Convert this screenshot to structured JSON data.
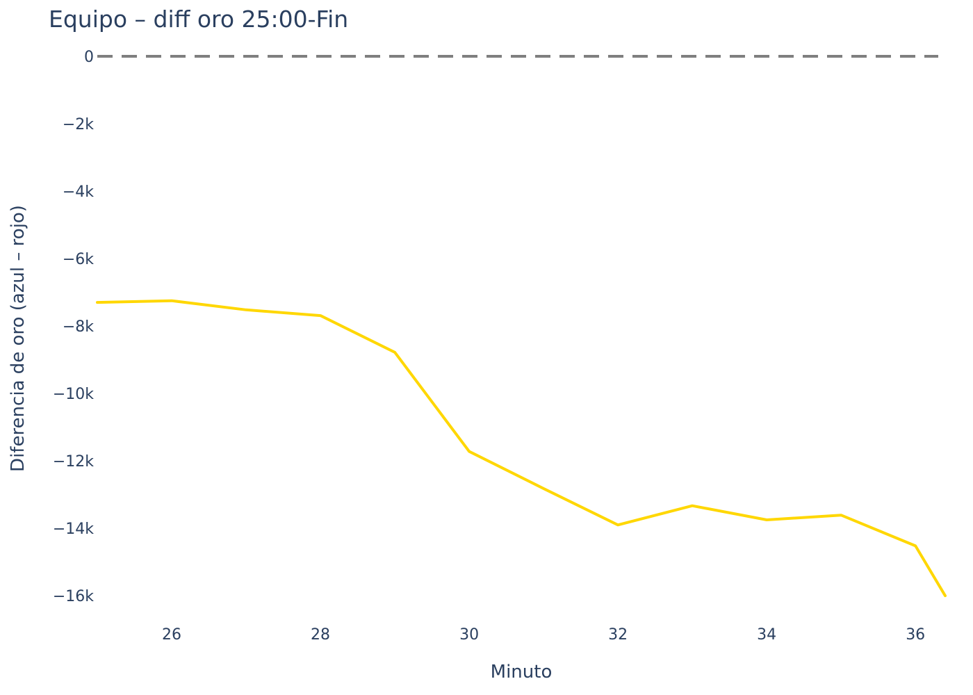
{
  "chart_data": {
    "type": "line",
    "title": "Equipo – diff oro 25:00-Fin",
    "xlabel": "Minuto",
    "ylabel": "Diferencia de oro (azul – rojo)",
    "x": [
      25,
      26,
      27,
      28,
      29,
      30,
      31,
      32,
      33,
      34,
      35,
      36,
      36.4
    ],
    "series": [
      {
        "values": [
          -7300,
          -7250,
          -7520,
          -7690,
          -8780,
          -11720,
          -12820,
          -13900,
          -13330,
          -13750,
          -13610,
          -14520,
          -16000
        ],
        "color": "#FFD700"
      }
    ],
    "reference_line": {
      "y": 0,
      "style": "dashed",
      "color": "#7f7f7f"
    },
    "xlim": [
      25,
      36.4
    ],
    "ylim": [
      -16800,
      0
    ],
    "x_ticks": [
      26,
      28,
      30,
      32,
      34,
      36
    ],
    "x_tick_labels": [
      "26",
      "28",
      "30",
      "32",
      "34",
      "36"
    ],
    "y_ticks": [
      0,
      -2000,
      -4000,
      -6000,
      -8000,
      -10000,
      -12000,
      -14000,
      -16000
    ],
    "y_tick_labels": [
      "0",
      "−2k",
      "−4k",
      "−6k",
      "−8k",
      "−10k",
      "−12k",
      "−14k",
      "−16k"
    ],
    "grid": false,
    "legend": false
  }
}
